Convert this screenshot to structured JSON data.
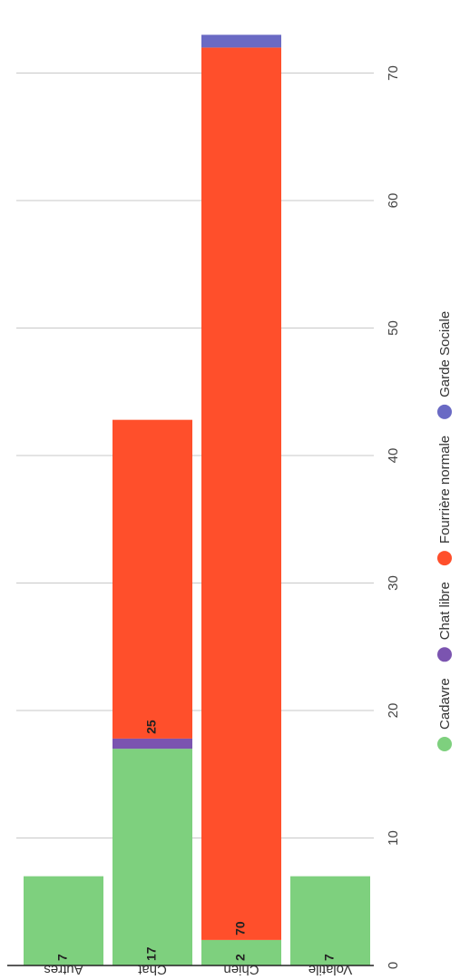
{
  "chart_data": {
    "type": "bar",
    "orientation": "horizontal-stacked",
    "categories": [
      "Autres",
      "Chat",
      "Chien",
      "Volatile"
    ],
    "series": [
      {
        "name": "Cadavre",
        "color": "#7ed07e",
        "values": [
          7,
          17,
          2,
          7
        ]
      },
      {
        "name": "Chat libre",
        "color": "#7b54b0",
        "values": [
          0,
          0.8,
          0,
          0
        ]
      },
      {
        "name": "Fourrière normale",
        "color": "#ff4f2b",
        "values": [
          0,
          25,
          70,
          0
        ]
      },
      {
        "name": "Garde Sociale",
        "color": "#6a6ac4",
        "values": [
          0,
          0,
          1,
          0
        ]
      }
    ],
    "data_labels": [
      {
        "category": "Autres",
        "series": "Cadavre",
        "text": "7"
      },
      {
        "category": "Chat",
        "series": "Cadavre",
        "text": "17"
      },
      {
        "category": "Chat",
        "series": "Fourrière normale",
        "text": "25"
      },
      {
        "category": "Chien",
        "series": "Cadavre",
        "text": "2"
      },
      {
        "category": "Chien",
        "series": "Fourrière normale",
        "text": "70"
      },
      {
        "category": "Volatile",
        "series": "Cadavre",
        "text": "7"
      }
    ],
    "ticks": [
      "0",
      "10",
      "20",
      "30",
      "40",
      "50",
      "60",
      "70"
    ],
    "xlim": [
      0,
      73
    ],
    "grid": true,
    "legend_position": "bottom"
  }
}
